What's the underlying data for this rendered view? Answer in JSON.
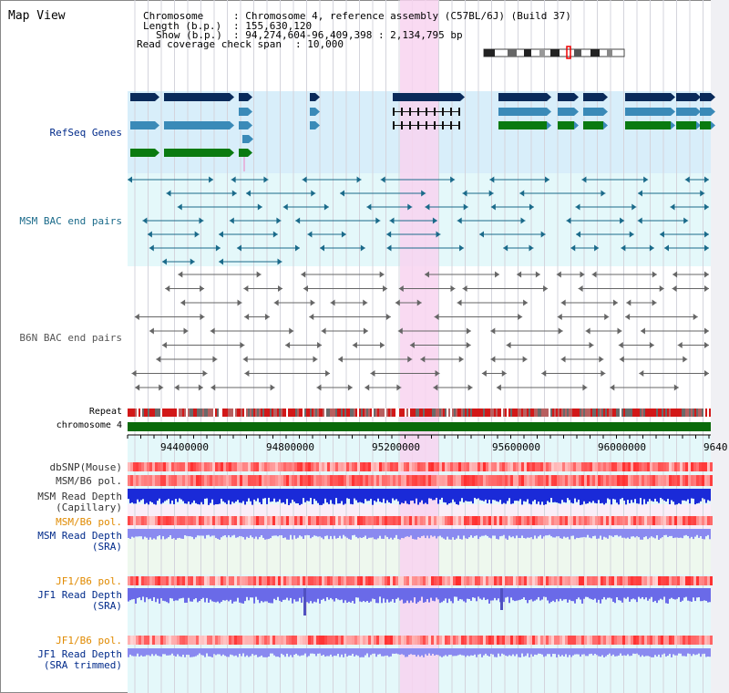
{
  "header": {
    "title": "Map View",
    "chromosome_label": "Chromosome",
    "chromosome_value": ": Chromosome 4, reference assembly (C57BL/6J) (Build 37)",
    "length_label": "Length (b.p.)",
    "length_value": ": 155,630,120",
    "show_label": "Show (b.p.)",
    "show_value": ": 94,274,604-96,409,398 : 2,134,795 bp",
    "coverage_label": "Read coverage check span",
    "coverage_value": ": 10,000"
  },
  "tracks": {
    "refseq": "RefSeq Genes",
    "msm_bac": "MSM BAC end pairs",
    "b6n_bac": "B6N BAC end pairs",
    "repeat": "Repeat",
    "chromosome": "chromosome 4",
    "dbsnp": "dbSNP(Mouse)",
    "msm_b6_pol_1": "MSM/B6 pol.",
    "msm_depth_cap_1": "MSM Read Depth",
    "msm_depth_cap_2": "(Capillary)",
    "msm_b6_pol_2": "MSM/B6 pol.",
    "msm_depth_sra_1": "MSM Read Depth",
    "msm_depth_sra_2": "(SRA)",
    "jf1_b6_pol_1": "JF1/B6 pol.",
    "jf1_depth_sra_1": "JF1 Read Depth",
    "jf1_depth_sra_2": "(SRA)",
    "jf1_b6_pol_2": "JF1/B6 pol.",
    "jf1_depth_trim_1": "JF1 Read Depth",
    "jf1_depth_trim_2": "(SRA trimmed)"
  },
  "axis": {
    "ticks": [
      "94400000",
      "94800000",
      "95200000",
      "95600000",
      "96000000",
      "9640"
    ]
  },
  "colors": {
    "highlight": "#f8d4f0",
    "refseq_bg": "#d8eefa",
    "msm_bg": "#e4f8fa",
    "dark_gene": "#0a2a5a",
    "mid_gene": "#3a8ab8",
    "green_gene": "#0a7a10",
    "msm_bac": "#1a6a8a",
    "b6n_bac": "#666666",
    "label_blue": "#002a8a",
    "label_orange": "#e08a00",
    "chromosome_bar": "#0a6a0a"
  }
}
